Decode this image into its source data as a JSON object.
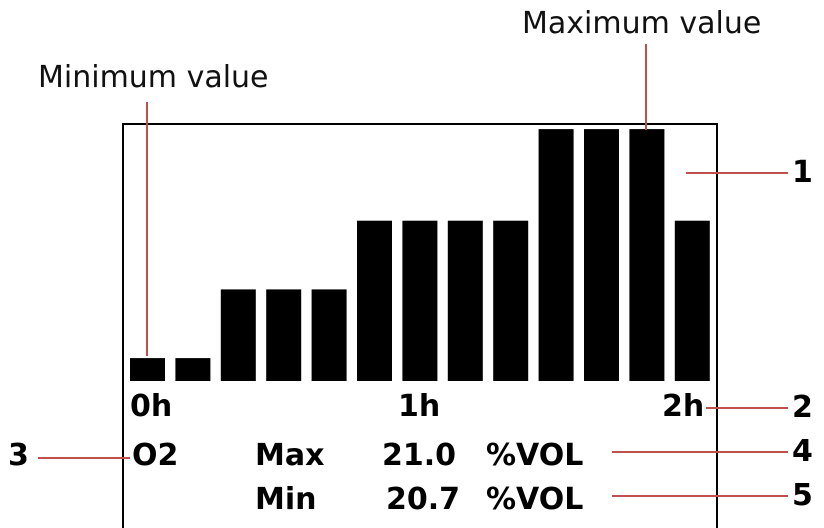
{
  "annotations": {
    "minimum_label": "Minimum value",
    "maximum_label": "Maximum value",
    "callout_1": "1",
    "callout_2": "2",
    "callout_3": "3",
    "callout_4": "4",
    "callout_5": "5"
  },
  "display": {
    "time_start": "0h",
    "time_mid": "1h",
    "time_end": "2h",
    "gas": "O2",
    "max_label": "Max",
    "max_value": "21.0",
    "max_unit": "%VOL",
    "min_label": "Min",
    "min_value": "20.7",
    "min_unit": "%VOL"
  },
  "chart_data": {
    "type": "bar",
    "bar_levels": [
      1,
      1,
      4,
      4,
      4,
      7,
      7,
      7,
      7,
      11,
      11,
      11,
      7
    ],
    "level_max": 11,
    "bar_color": "#000000",
    "leader_color": "#c0504d"
  }
}
